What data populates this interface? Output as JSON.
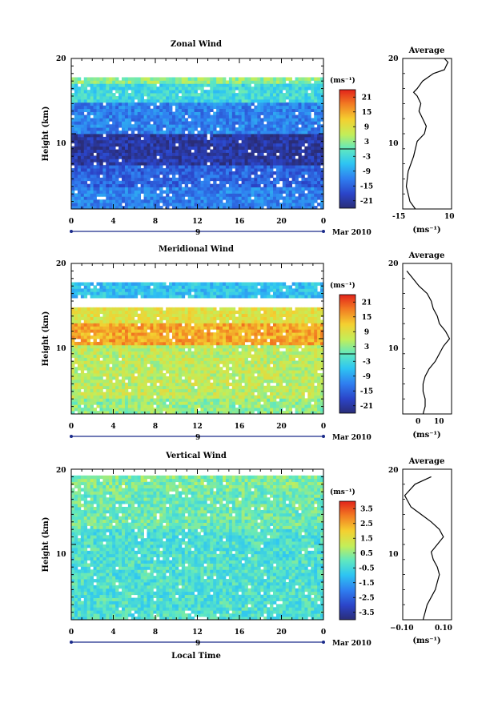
{
  "figure": {
    "x_ticks": [
      "0",
      "4",
      "8",
      "12",
      "16",
      "20",
      "0"
    ],
    "day_label": "9",
    "month_label": "Mar 2010",
    "xlabel": "Local Time",
    "ylabel": "Height (km)",
    "y_ticks": [
      "20",
      "10"
    ],
    "units": "(ms⁻¹)"
  },
  "chart_data": [
    {
      "type": "heatmap",
      "title": "Zonal Wind",
      "xlabel": "",
      "ylabel": "Height (km)",
      "xlim": [
        0,
        24
      ],
      "ylim": [
        0,
        20
      ],
      "colorbar": {
        "ticks": [
          "21",
          "15",
          "9",
          "3",
          "-3",
          "-9",
          "-15",
          "-21"
        ],
        "range": [
          -24,
          24
        ],
        "zero_contour": 0
      },
      "approx_profile": [
        {
          "h": [
            0,
            3
          ],
          "value": -12
        },
        {
          "h": [
            3,
            6
          ],
          "value": -15
        },
        {
          "h": [
            6,
            10
          ],
          "value": -21
        },
        {
          "h": [
            10,
            14
          ],
          "value": -12
        },
        {
          "h": [
            14,
            16.5
          ],
          "value": -3
        },
        {
          "h": [
            16.5,
            17.5
          ],
          "value": 3
        }
      ]
    },
    {
      "type": "line",
      "title": "Average",
      "xlabel": "(ms⁻¹)",
      "ylabel": "",
      "xlim": [
        -15,
        12
      ],
      "ylim": [
        0,
        20
      ],
      "x_ticks": [
        "-15",
        "10"
      ],
      "y_ticks": [
        "20",
        "10"
      ],
      "series": [
        {
          "x": [
            -8,
            -11,
            -12,
            -13,
            -12,
            -9,
            -7,
            -3,
            -2,
            -4,
            -6,
            -5,
            -7,
            -9,
            -7,
            -4,
            2,
            8,
            9,
            10,
            8
          ],
          "y": [
            0,
            1,
            2,
            3,
            5,
            7,
            9,
            10,
            11,
            12,
            13,
            14,
            15,
            15.5,
            16,
            17,
            18,
            18.5,
            19,
            19.5,
            20
          ]
        }
      ]
    },
    {
      "type": "heatmap",
      "title": "Meridional Wind",
      "xlabel": "",
      "ylabel": "Height (km)",
      "xlim": [
        0,
        24
      ],
      "ylim": [
        0,
        20
      ],
      "colorbar": {
        "ticks": [
          "21",
          "15",
          "9",
          "3",
          "-3",
          "-9",
          "-15",
          "-21"
        ],
        "range": [
          -24,
          24
        ],
        "zero_contour": 0
      },
      "approx_profile": [
        {
          "h": [
            0,
            2
          ],
          "value": 3
        },
        {
          "h": [
            2,
            6
          ],
          "value": 6
        },
        {
          "h": [
            6,
            9
          ],
          "value": 6
        },
        {
          "h": [
            9,
            12
          ],
          "value": 15
        },
        {
          "h": [
            12,
            14
          ],
          "value": 9
        },
        {
          "h": [
            15.5,
            17.5
          ],
          "value": -6
        }
      ]
    },
    {
      "type": "line",
      "title": "Average",
      "xlabel": "(ms⁻¹)",
      "ylabel": "",
      "xlim": [
        -8,
        16
      ],
      "ylim": [
        0,
        20
      ],
      "x_ticks": [
        "0",
        "10"
      ],
      "y_ticks": [
        "20",
        "10"
      ],
      "series": [
        {
          "x": [
            2,
            3,
            3,
            2,
            2,
            3,
            5,
            8,
            12,
            15,
            13,
            10,
            9,
            7,
            6,
            4,
            0,
            -3,
            -6
          ],
          "y": [
            0,
            1,
            2,
            3,
            4,
            5,
            6,
            7,
            9,
            10,
            11,
            12,
            13,
            14,
            15,
            16,
            17,
            18,
            19
          ]
        }
      ]
    },
    {
      "type": "heatmap",
      "title": "Vertical Wind",
      "xlabel": "Local Time",
      "ylabel": "Height (km)",
      "xlim": [
        0,
        24
      ],
      "ylim": [
        0,
        20
      ],
      "colorbar": {
        "ticks": [
          "3.5",
          "2.5",
          "1.5",
          "0.5",
          "-0.5",
          "-1.5",
          "-2.5",
          "-3.5"
        ],
        "range": [
          -4,
          4
        ]
      },
      "approx_profile": [
        {
          "h": [
            0,
            12
          ],
          "value": -0.3
        },
        {
          "h": [
            12,
            17
          ],
          "value": 0.1
        },
        {
          "h": [
            17,
            19
          ],
          "value": 0.3
        }
      ]
    },
    {
      "type": "line",
      "title": "Average",
      "xlabel": "(ms⁻¹)",
      "ylabel": "",
      "xlim": [
        -0.12,
        0.12
      ],
      "ylim": [
        0,
        20
      ],
      "x_ticks": [
        "−0.10",
        "0.10"
      ],
      "y_ticks": [
        "20",
        "10"
      ],
      "series": [
        {
          "x": [
            -0.02,
            -0.01,
            0.0,
            0.02,
            0.04,
            0.05,
            0.06,
            0.05,
            0.03,
            0.02,
            0.05,
            0.08,
            0.06,
            0.02,
            -0.03,
            -0.08,
            -0.11,
            -0.06,
            0.02
          ],
          "y": [
            0,
            1,
            2,
            3,
            4,
            5,
            6,
            7,
            8,
            9,
            10,
            11,
            12,
            13,
            14,
            15,
            16.5,
            18,
            19
          ]
        }
      ]
    }
  ]
}
